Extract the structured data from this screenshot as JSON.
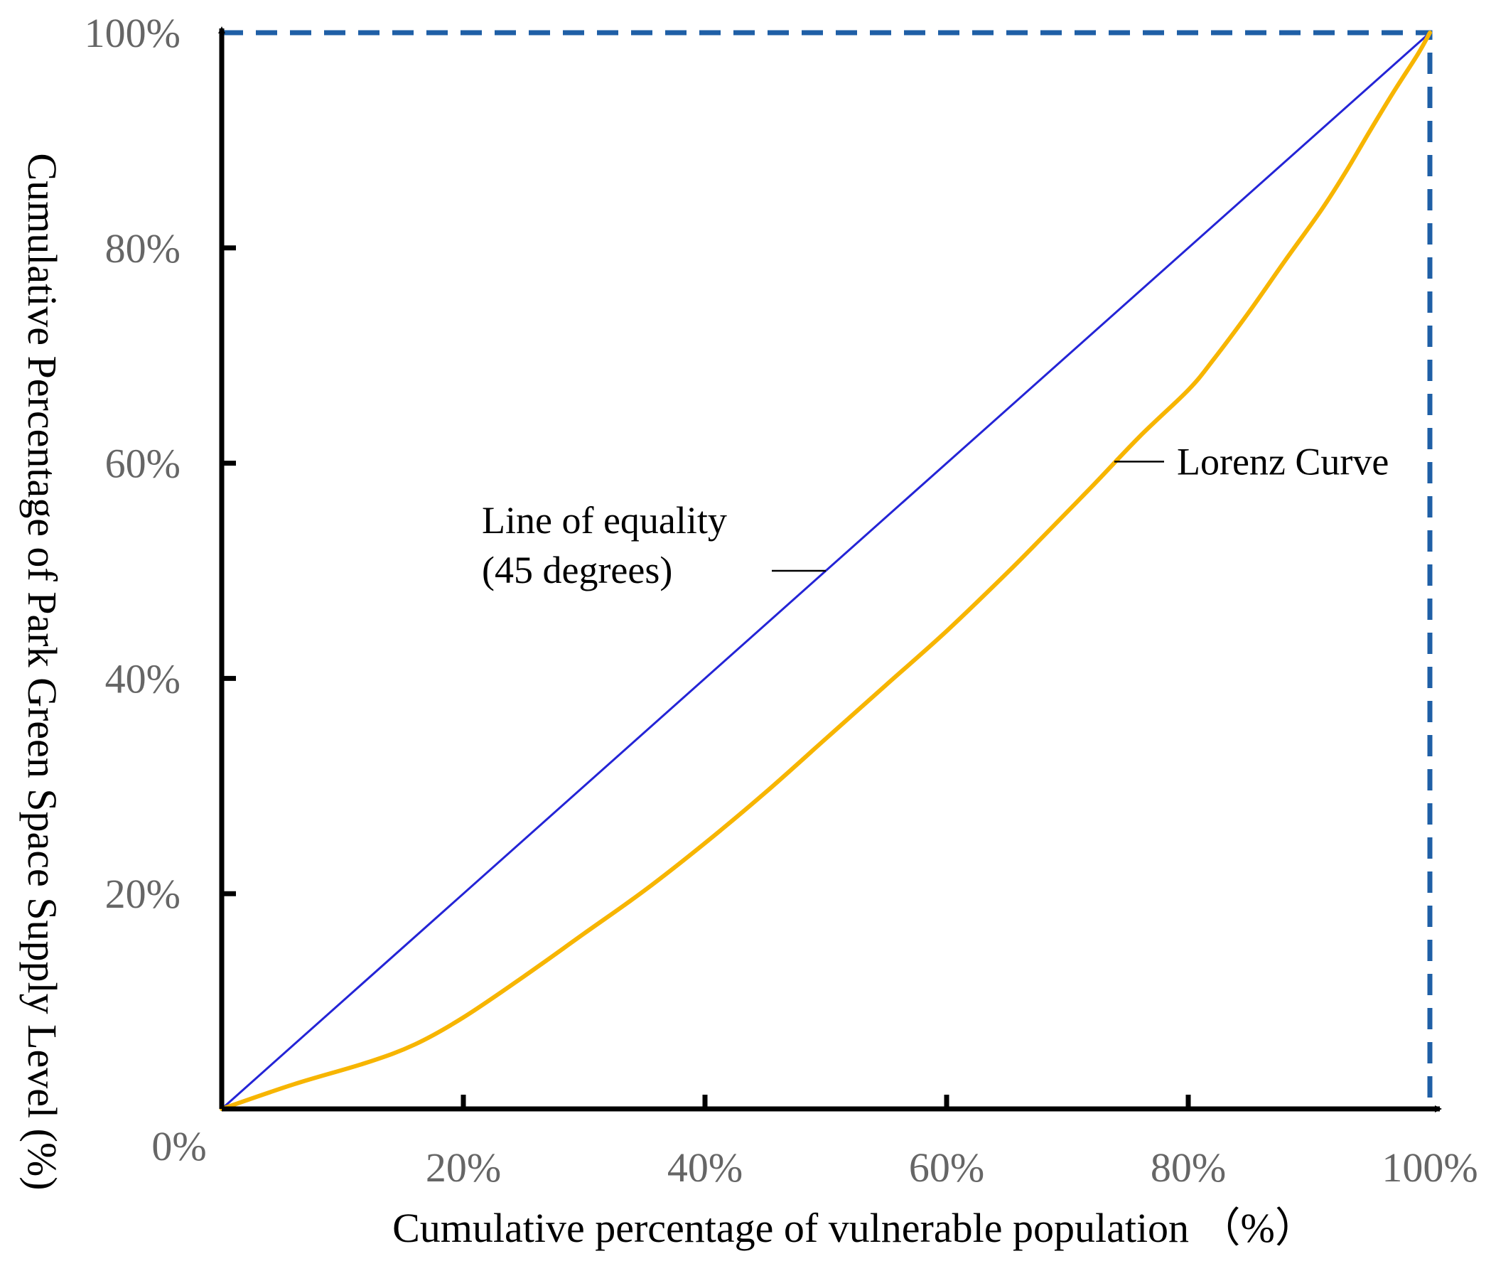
{
  "chart_data": {
    "type": "line",
    "title": "",
    "xlabel": "Cumulative percentage of vulnerable population （%）",
    "ylabel": "Cumulative Percentage of Park Green Space Supply Level (%)",
    "xlim": [
      0,
      100
    ],
    "ylim": [
      0,
      100
    ],
    "origin_label": "0%",
    "x_tick_values": [
      20,
      40,
      60,
      80,
      100
    ],
    "x_tick_labels": [
      "20%",
      "40%",
      "60%",
      "80%",
      "100%"
    ],
    "y_tick_values": [
      20,
      40,
      60,
      80,
      100
    ],
    "y_tick_labels": [
      "20%",
      "40%",
      "60%",
      "80%",
      "100%"
    ],
    "series": [
      {
        "name": "Line of equality (45 degrees)",
        "color": "#2424d6",
        "x": [
          0,
          100
        ],
        "y": [
          0,
          100
        ]
      },
      {
        "name": "Lorenz Curve",
        "color": "#f7b500",
        "x": [
          0,
          6,
          12,
          16,
          20,
          25,
          30,
          35,
          40,
          45,
          50,
          55,
          60,
          65,
          68,
          72,
          76,
          80,
          82,
          85,
          88,
          91,
          93,
          95,
          97,
          99,
          100
        ],
        "y": [
          0,
          2.3,
          4.3,
          6,
          8.5,
          12.3,
          16.3,
          20.3,
          24.7,
          29.4,
          34.4,
          39.4,
          44.4,
          49.8,
          53.2,
          57.8,
          62.5,
          66.8,
          69.5,
          74,
          78.8,
          83.5,
          87,
          90.8,
          94.5,
          98,
          100
        ]
      }
    ],
    "annotations": [
      {
        "line1": "Line of equality",
        "line2": "(45 degrees)",
        "target": "Line of equality (45 degrees)",
        "at_x": 50
      },
      {
        "text": "Lorenz Curve",
        "target": "Lorenz Curve",
        "at_x": 74
      }
    ],
    "boundary_color": "#1f5fa6",
    "axis_color": "#000000"
  }
}
